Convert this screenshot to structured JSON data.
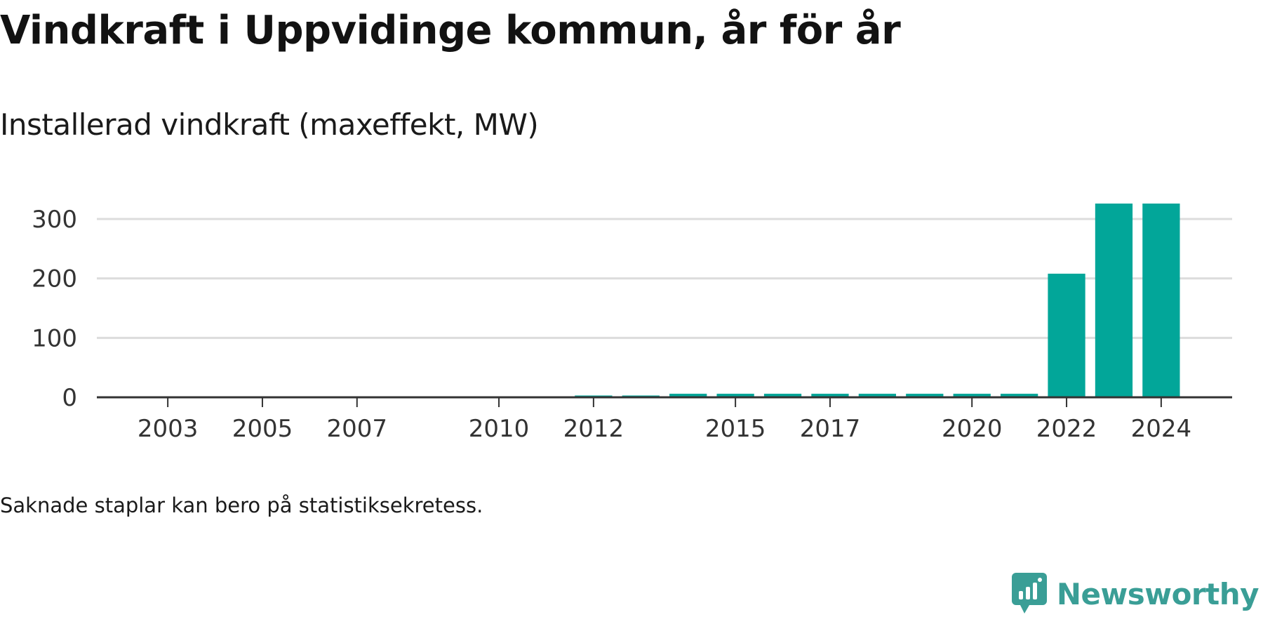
{
  "title": "Vindkraft i Uppvidinge kommun, år för år",
  "subtitle": "Installerad vindkraft (maxeffekt, MW)",
  "note": "Saknade staplar kan bero på statistiksekretess.",
  "brand": {
    "name": "Newsworthy",
    "icon": "newsworthy-logo-icon",
    "color": "#3a9e96"
  },
  "chart_data": {
    "type": "bar",
    "bar_color": "#02a699",
    "categories": [
      2012,
      2013,
      2014,
      2015,
      2016,
      2017,
      2018,
      2019,
      2020,
      2021,
      2022,
      2023,
      2024
    ],
    "values": [
      3,
      3,
      6,
      6,
      6,
      6,
      6,
      6,
      6,
      6,
      208,
      326,
      326
    ],
    "x_range": [
      2001.5,
      2025.5
    ],
    "x_ticks": [
      2003,
      2005,
      2007,
      2010,
      2012,
      2015,
      2017,
      2020,
      2022,
      2024
    ],
    "y_ticks": [
      0,
      100,
      200,
      300
    ],
    "ylim": [
      0,
      340
    ],
    "grid": true,
    "xlabel": "",
    "ylabel": ""
  }
}
